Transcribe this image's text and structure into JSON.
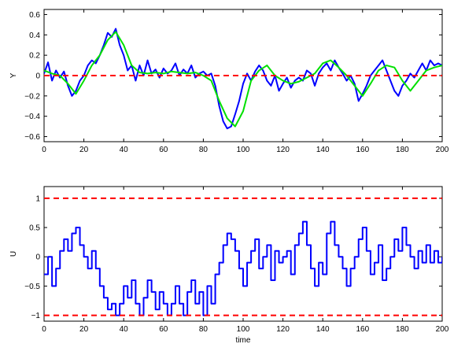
{
  "chart_data": [
    {
      "type": "line",
      "xlabel": "",
      "ylabel": "Y",
      "xlim": [
        0,
        200
      ],
      "ylim": [
        -0.65,
        0.65
      ],
      "xticks": [
        0,
        20,
        40,
        60,
        80,
        100,
        120,
        140,
        160,
        180,
        200
      ],
      "yticks": [
        -0.6,
        -0.4,
        -0.2,
        0,
        0.2,
        0.4,
        0.6
      ],
      "ytick_labels": [
        "−0.6",
        "−0.4",
        "−0.2",
        "0",
        "0.2",
        "0.4",
        "0.6"
      ],
      "xtick_labels": [
        "0",
        "20",
        "40",
        "60",
        "80",
        "100",
        "120",
        "140",
        "160",
        "180",
        "200"
      ],
      "series": [
        {
          "color": "#0000ff",
          "style": "solid",
          "x": [
            0,
            2,
            4,
            6,
            8,
            10,
            12,
            14,
            16,
            18,
            20,
            22,
            24,
            26,
            28,
            30,
            32,
            34,
            36,
            38,
            40,
            42,
            44,
            46,
            48,
            50,
            52,
            54,
            56,
            58,
            60,
            62,
            64,
            66,
            68,
            70,
            72,
            74,
            76,
            78,
            80,
            82,
            84,
            86,
            88,
            90,
            92,
            94,
            96,
            98,
            100,
            102,
            104,
            106,
            108,
            110,
            112,
            114,
            116,
            118,
            120,
            122,
            124,
            126,
            128,
            130,
            132,
            134,
            136,
            138,
            140,
            142,
            144,
            146,
            148,
            150,
            152,
            154,
            156,
            158,
            160,
            162,
            164,
            166,
            168,
            170,
            172,
            174,
            176,
            178,
            180,
            182,
            184,
            186,
            188,
            190,
            192,
            194,
            196,
            198,
            200
          ],
          "y": [
            0.02,
            0.13,
            -0.05,
            0.05,
            -0.02,
            0.04,
            -0.1,
            -0.2,
            -0.15,
            -0.05,
            0.0,
            0.1,
            0.15,
            0.12,
            0.2,
            0.3,
            0.42,
            0.38,
            0.46,
            0.3,
            0.2,
            0.05,
            0.1,
            -0.05,
            0.1,
            0.0,
            0.15,
            0.02,
            0.06,
            -0.02,
            0.07,
            0.02,
            0.05,
            0.12,
            0.0,
            0.06,
            0.02,
            0.1,
            -0.02,
            0.02,
            0.04,
            0.0,
            0.02,
            -0.1,
            -0.3,
            -0.45,
            -0.52,
            -0.5,
            -0.38,
            -0.25,
            -0.08,
            0.02,
            -0.05,
            0.04,
            0.1,
            0.05,
            -0.05,
            -0.1,
            0.0,
            -0.15,
            -0.08,
            -0.02,
            -0.12,
            -0.05,
            -0.02,
            -0.05,
            0.05,
            0.02,
            -0.1,
            0.02,
            0.08,
            0.12,
            0.05,
            0.15,
            0.08,
            0.02,
            -0.05,
            0.0,
            -0.08,
            -0.25,
            -0.18,
            -0.1,
            0.0,
            0.05,
            0.1,
            0.15,
            0.05,
            -0.05,
            -0.15,
            -0.2,
            -0.1,
            -0.05,
            0.02,
            -0.02,
            0.05,
            0.12,
            0.05,
            0.15,
            0.1,
            0.12,
            0.1
          ]
        },
        {
          "color": "#00e000",
          "style": "solid",
          "x": [
            0,
            4,
            8,
            12,
            16,
            20,
            24,
            28,
            32,
            36,
            40,
            44,
            48,
            52,
            56,
            60,
            64,
            68,
            72,
            76,
            80,
            84,
            88,
            92,
            96,
            100,
            104,
            108,
            112,
            116,
            120,
            124,
            128,
            132,
            136,
            140,
            144,
            148,
            152,
            156,
            160,
            164,
            168,
            172,
            176,
            180,
            184,
            188,
            192,
            196,
            200
          ],
          "y": [
            0.05,
            0.02,
            0.0,
            -0.08,
            -0.18,
            -0.05,
            0.1,
            0.2,
            0.35,
            0.43,
            0.3,
            0.1,
            0.03,
            0.02,
            0.03,
            0.02,
            0.04,
            0.03,
            0.02,
            0.03,
            0.0,
            -0.05,
            -0.25,
            -0.42,
            -0.5,
            -0.35,
            -0.05,
            0.05,
            0.1,
            0.0,
            -0.05,
            -0.08,
            -0.06,
            -0.02,
            0.02,
            0.12,
            0.15,
            0.08,
            0.0,
            -0.1,
            -0.2,
            -0.08,
            0.05,
            0.1,
            0.08,
            -0.05,
            -0.15,
            -0.05,
            0.05,
            0.08,
            0.1
          ]
        },
        {
          "color": "#ff0000",
          "style": "dashed",
          "x": [
            0,
            200
          ],
          "y": [
            0,
            0
          ]
        }
      ]
    },
    {
      "type": "line",
      "xlabel": "time",
      "ylabel": "U",
      "xlim": [
        0,
        200
      ],
      "ylim": [
        -1.1,
        1.2
      ],
      "xticks": [
        0,
        20,
        40,
        60,
        80,
        100,
        120,
        140,
        160,
        180,
        200
      ],
      "yticks": [
        -1,
        -0.5,
        0,
        0.5,
        1
      ],
      "ytick_labels": [
        "−1",
        "−0.5",
        "0",
        "0.5",
        "1"
      ],
      "xtick_labels": [
        "0",
        "20",
        "40",
        "60",
        "80",
        "100",
        "120",
        "140",
        "160",
        "180",
        "200"
      ],
      "series": [
        {
          "color": "#0000ff",
          "style": "step",
          "x": [
            0,
            2,
            4,
            6,
            8,
            10,
            12,
            14,
            16,
            18,
            20,
            22,
            24,
            26,
            28,
            30,
            32,
            34,
            36,
            38,
            40,
            42,
            44,
            46,
            48,
            50,
            52,
            54,
            56,
            58,
            60,
            62,
            64,
            66,
            68,
            70,
            72,
            74,
            76,
            78,
            80,
            82,
            84,
            86,
            88,
            90,
            92,
            94,
            96,
            98,
            100,
            102,
            104,
            106,
            108,
            110,
            112,
            114,
            116,
            118,
            120,
            122,
            124,
            126,
            128,
            130,
            132,
            134,
            136,
            138,
            140,
            142,
            144,
            146,
            148,
            150,
            152,
            154,
            156,
            158,
            160,
            162,
            164,
            166,
            168,
            170,
            172,
            174,
            176,
            178,
            180,
            182,
            184,
            186,
            188,
            190,
            192,
            194,
            196,
            198,
            200
          ],
          "y": [
            -0.3,
            0.0,
            -0.5,
            -0.2,
            0.1,
            0.3,
            0.1,
            0.4,
            0.5,
            0.2,
            0.0,
            -0.2,
            0.1,
            -0.2,
            -0.5,
            -0.7,
            -0.9,
            -0.8,
            -1.0,
            -0.8,
            -0.5,
            -0.7,
            -0.4,
            -0.8,
            -1.0,
            -0.7,
            -0.4,
            -0.6,
            -0.9,
            -0.6,
            -0.8,
            -1.0,
            -0.8,
            -0.5,
            -0.8,
            -1.0,
            -0.6,
            -0.4,
            -0.8,
            -0.6,
            -1.0,
            -0.5,
            -0.8,
            -0.3,
            -0.1,
            0.2,
            0.4,
            0.3,
            0.1,
            -0.2,
            -0.5,
            -0.1,
            0.1,
            0.3,
            -0.2,
            0.0,
            0.2,
            -0.4,
            0.1,
            -0.1,
            0.0,
            0.1,
            -0.3,
            0.2,
            0.4,
            0.6,
            0.2,
            -0.2,
            -0.5,
            -0.1,
            -0.3,
            0.4,
            0.6,
            0.2,
            0.0,
            -0.2,
            -0.5,
            -0.2,
            0.0,
            0.3,
            0.5,
            0.1,
            -0.3,
            -0.1,
            0.2,
            -0.4,
            -0.2,
            0.0,
            0.3,
            0.1,
            0.5,
            0.2,
            0.0,
            -0.2,
            0.1,
            -0.1,
            0.2,
            -0.1,
            0.1,
            -0.1,
            0.0
          ]
        },
        {
          "color": "#ff0000",
          "style": "dashed",
          "x": [
            0,
            200
          ],
          "y": [
            1,
            1
          ]
        },
        {
          "color": "#ff0000",
          "style": "dashed",
          "x": [
            0,
            200
          ],
          "y": [
            -1,
            -1
          ]
        }
      ]
    }
  ]
}
